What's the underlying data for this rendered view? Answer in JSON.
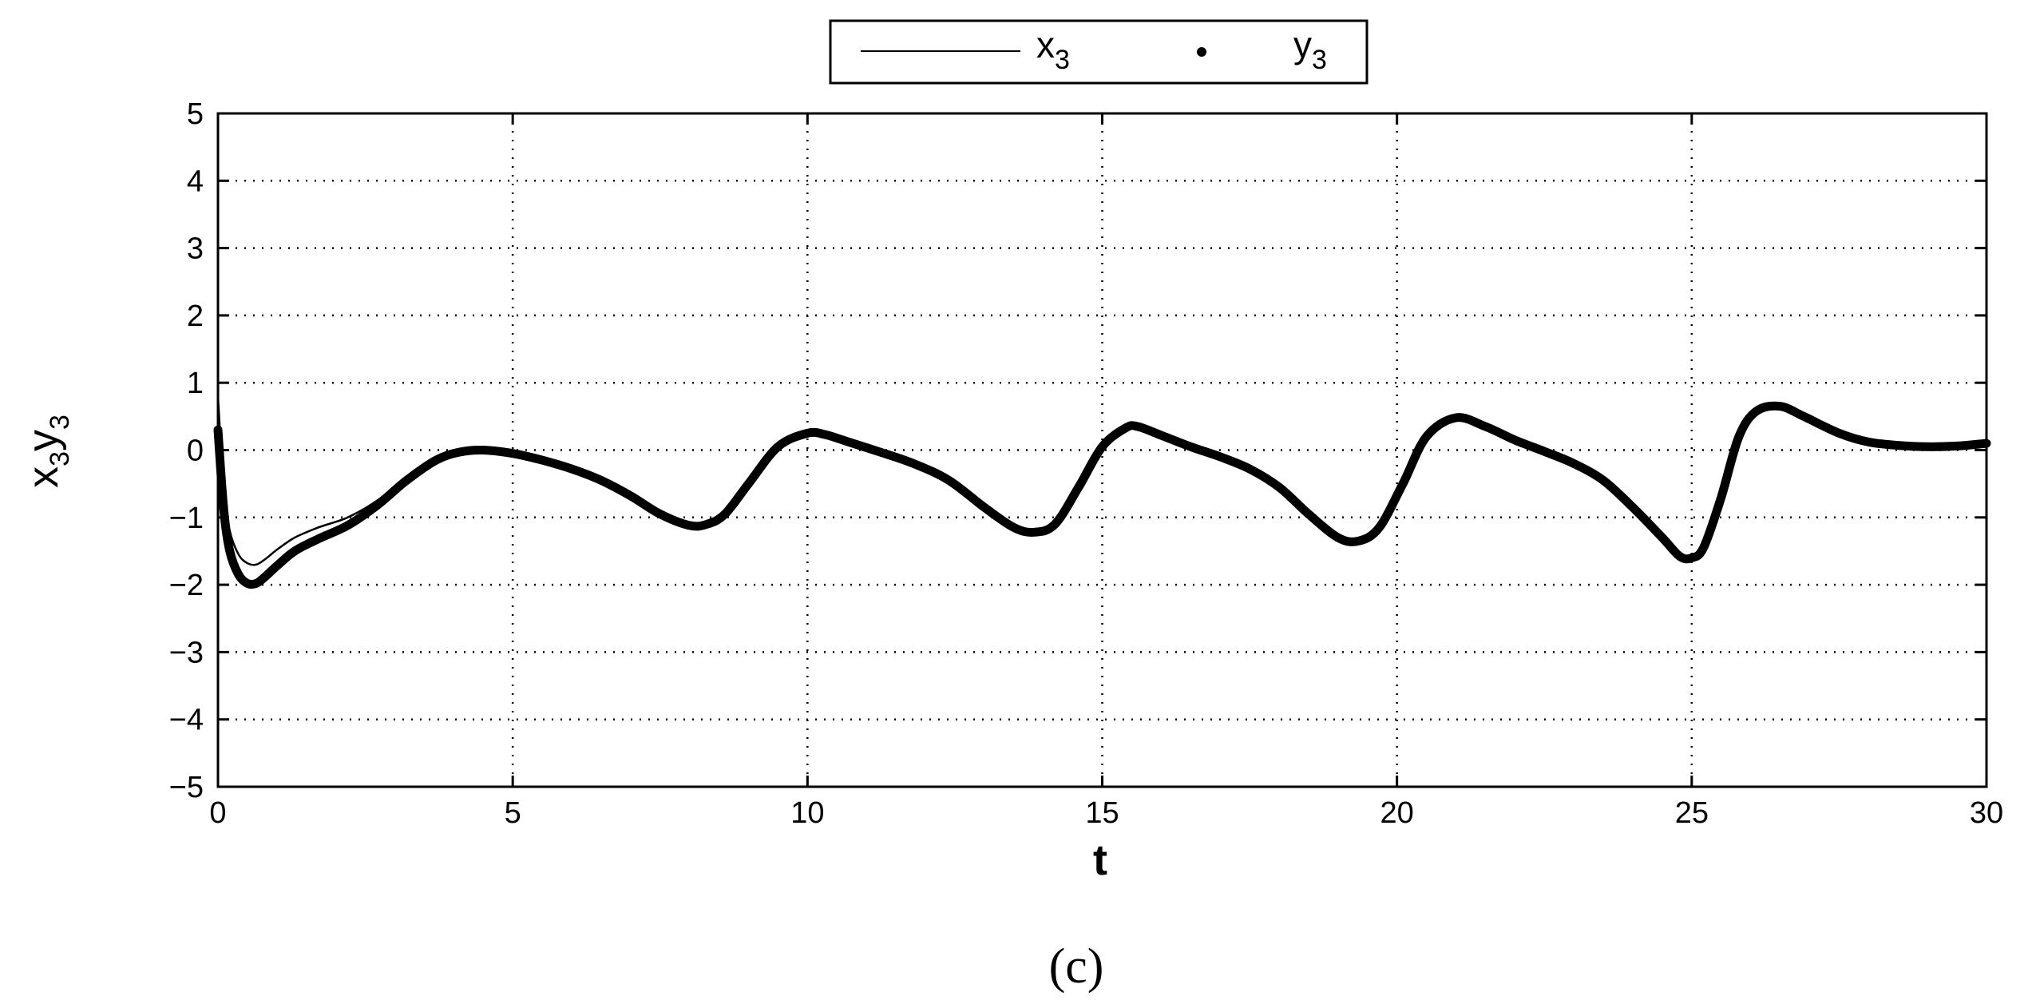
{
  "chart_data": {
    "type": "line",
    "xlabel": "t",
    "ylabel": {
      "a": "x",
      "a_sub": "3",
      "b": "y",
      "b_sub": "3"
    },
    "xlim": [
      0,
      30
    ],
    "ylim": [
      -5,
      5
    ],
    "x_ticks": [
      "0",
      "5",
      "10",
      "15",
      "20",
      "25",
      "30"
    ],
    "y_ticks": [
      "5",
      "4",
      "3",
      "2",
      "1",
      "0",
      "−1",
      "−2",
      "−3",
      "−4",
      "−5"
    ],
    "grid": true,
    "legend": {
      "placement": "top-center, outside",
      "entries": [
        {
          "name": "x",
          "sub": "3",
          "style": "thin line"
        },
        {
          "name": "y",
          "sub": "3",
          "style": "dot"
        }
      ]
    },
    "series": [
      {
        "name": "x3",
        "x": [
          0,
          0.1,
          0.2,
          0.35,
          0.5,
          0.65,
          0.8,
          1.0,
          1.3,
          1.7,
          2.2,
          2.7,
          3.2,
          3.7,
          4.1,
          4.5,
          5.0,
          5.5,
          6.0,
          6.5,
          7.0,
          7.5,
          8.0,
          8.3,
          8.6,
          9.0,
          9.5,
          10.0,
          10.3,
          10.7,
          11.2,
          11.8,
          12.4,
          13.0,
          13.5,
          13.85,
          14.2,
          14.6,
          15.0,
          15.4,
          15.6,
          16.0,
          16.5,
          17.0,
          17.5,
          18.0,
          18.5,
          19.0,
          19.35,
          19.7,
          20.1,
          20.5,
          21.0,
          21.5,
          22.0,
          22.5,
          23.0,
          23.5,
          24.0,
          24.5,
          24.8,
          25.0,
          25.2,
          25.5,
          25.8,
          26.1,
          26.5,
          26.9,
          27.5,
          28.0,
          28.5,
          29.0,
          29.5,
          30.0
        ],
        "y": [
          0.8,
          -0.6,
          -1.2,
          -1.55,
          -1.68,
          -1.7,
          -1.62,
          -1.48,
          -1.3,
          -1.15,
          -1.0,
          -0.75,
          -0.4,
          -0.12,
          -0.02,
          0.0,
          -0.05,
          -0.15,
          -0.28,
          -0.45,
          -0.68,
          -0.95,
          -1.12,
          -1.1,
          -0.95,
          -0.5,
          0.05,
          0.25,
          0.23,
          0.12,
          -0.02,
          -0.2,
          -0.45,
          -0.85,
          -1.15,
          -1.22,
          -1.1,
          -0.55,
          0.05,
          0.33,
          0.35,
          0.22,
          0.05,
          -0.1,
          -0.28,
          -0.55,
          -0.95,
          -1.3,
          -1.35,
          -1.15,
          -0.5,
          0.2,
          0.48,
          0.35,
          0.15,
          -0.02,
          -0.2,
          -0.45,
          -0.85,
          -1.3,
          -1.58,
          -1.6,
          -1.45,
          -0.7,
          0.2,
          0.58,
          0.65,
          0.5,
          0.25,
          0.12,
          0.07,
          0.05,
          0.06,
          0.1
        ]
      },
      {
        "name": "y3",
        "x": [
          0,
          0.1,
          0.2,
          0.35,
          0.5,
          0.65,
          0.8,
          1.0,
          1.3,
          1.7,
          2.2,
          2.7,
          3.2,
          3.7,
          4.1,
          4.5,
          5.0,
          5.5,
          6.0,
          6.5,
          7.0,
          7.5,
          8.0,
          8.3,
          8.6,
          9.0,
          9.5,
          10.0,
          10.3,
          10.7,
          11.2,
          11.8,
          12.4,
          13.0,
          13.5,
          13.85,
          14.2,
          14.6,
          15.0,
          15.4,
          15.6,
          16.0,
          16.5,
          17.0,
          17.5,
          18.0,
          18.5,
          19.0,
          19.35,
          19.7,
          20.1,
          20.5,
          21.0,
          21.5,
          22.0,
          22.5,
          23.0,
          23.5,
          24.0,
          24.5,
          24.8,
          25.0,
          25.2,
          25.5,
          25.8,
          26.1,
          26.5,
          26.9,
          27.5,
          28.0,
          28.5,
          29.0,
          29.5,
          30.0
        ],
        "y": [
          0.3,
          -0.9,
          -1.5,
          -1.85,
          -1.98,
          -1.98,
          -1.88,
          -1.72,
          -1.5,
          -1.32,
          -1.12,
          -0.82,
          -0.45,
          -0.15,
          -0.03,
          0.0,
          -0.05,
          -0.15,
          -0.28,
          -0.45,
          -0.68,
          -0.95,
          -1.12,
          -1.1,
          -0.95,
          -0.5,
          0.05,
          0.25,
          0.23,
          0.12,
          -0.02,
          -0.2,
          -0.45,
          -0.85,
          -1.15,
          -1.22,
          -1.1,
          -0.55,
          0.05,
          0.33,
          0.35,
          0.22,
          0.05,
          -0.1,
          -0.28,
          -0.55,
          -0.95,
          -1.3,
          -1.35,
          -1.15,
          -0.5,
          0.2,
          0.48,
          0.35,
          0.15,
          -0.02,
          -0.2,
          -0.45,
          -0.85,
          -1.3,
          -1.58,
          -1.6,
          -1.45,
          -0.7,
          0.2,
          0.58,
          0.65,
          0.5,
          0.25,
          0.12,
          0.07,
          0.05,
          0.06,
          0.1
        ]
      }
    ]
  },
  "caption": "(c)"
}
